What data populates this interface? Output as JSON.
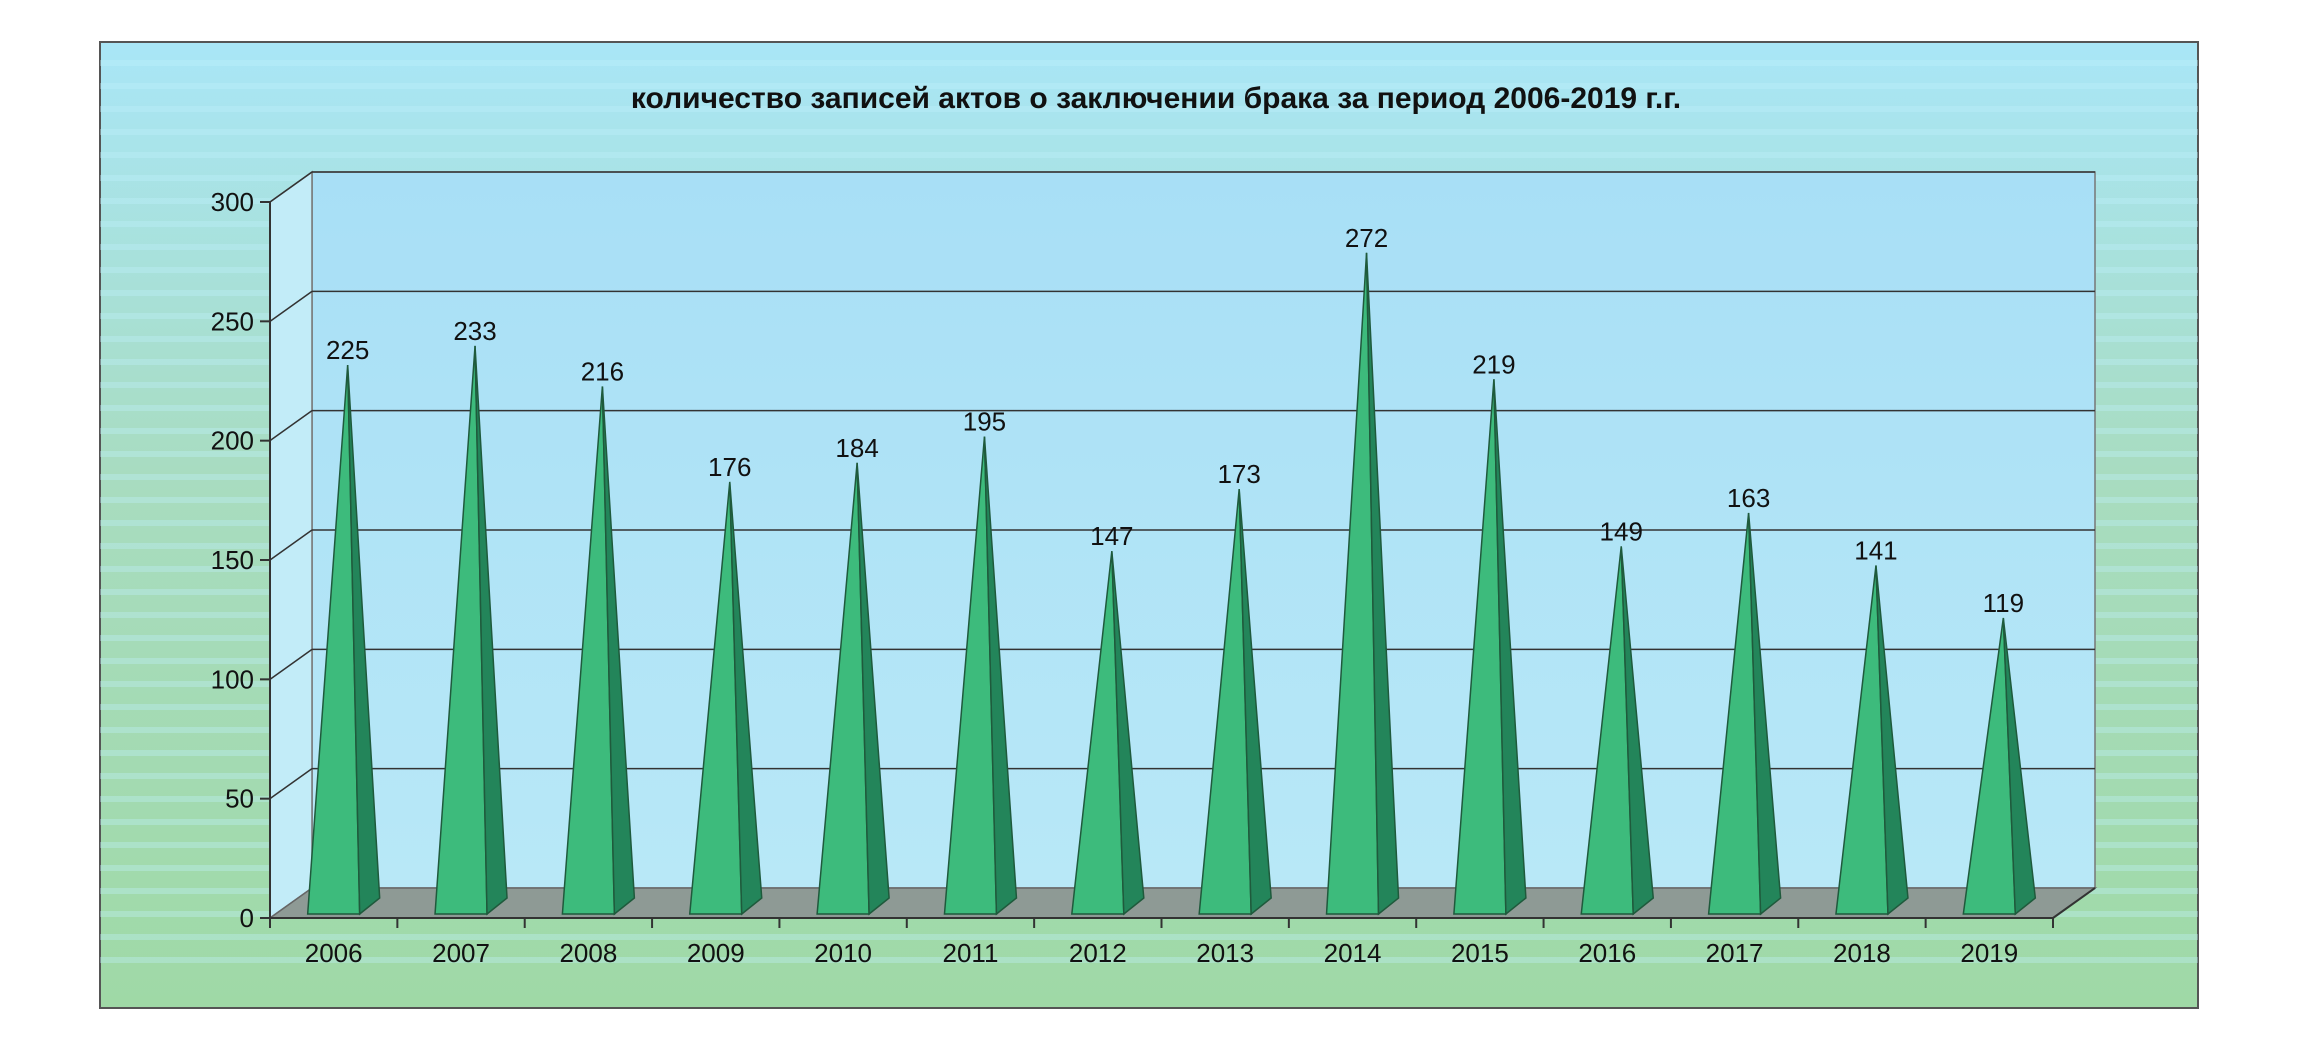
{
  "chart_data": {
    "type": "bar",
    "bar_shape": "pyramid-3d",
    "title": "количество записей актов о заключении брака за период 2006-2019 г.г.",
    "xlabel": "",
    "ylabel": "",
    "categories": [
      "2006",
      "2007",
      "2008",
      "2009",
      "2010",
      "2011",
      "2012",
      "2013",
      "2014",
      "2015",
      "2016",
      "2017",
      "2018",
      "2019"
    ],
    "values": [
      225,
      233,
      216,
      176,
      184,
      195,
      147,
      173,
      272,
      219,
      149,
      163,
      141,
      119
    ],
    "y_ticks": [
      "0",
      "50",
      "100",
      "150",
      "200",
      "250",
      "300"
    ],
    "ylim": [
      0,
      300
    ],
    "grid": true,
    "legend": "none",
    "colors": {
      "bar_front": "#3dbb7c",
      "bar_side": "#23855a",
      "wall": "#aee0f5",
      "floor": "#8e9a95",
      "outer_bg_top": "#a7e4f5",
      "outer_bg_bottom": "#9ed6a0"
    }
  }
}
